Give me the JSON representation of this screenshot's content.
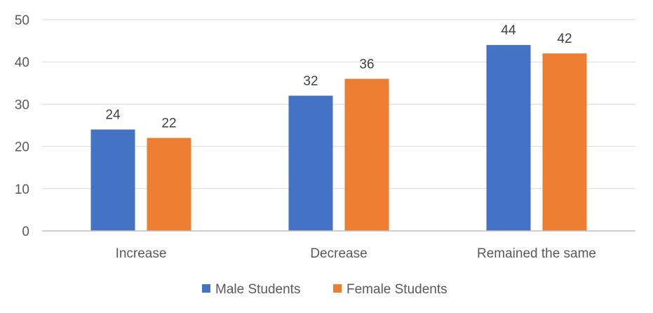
{
  "chart_data": {
    "type": "bar",
    "categories": [
      "Increase",
      "Decrease",
      "Remained the same"
    ],
    "series": [
      {
        "name": "Male Students",
        "values": [
          24,
          32,
          44
        ],
        "color": "#4472c4"
      },
      {
        "name": "Female Students",
        "values": [
          22,
          36,
          42
        ],
        "color": "#ed7d31"
      }
    ],
    "ylim": [
      0,
      50
    ],
    "yticks": [
      0,
      10,
      20,
      30,
      40,
      50
    ],
    "grid": true,
    "legend": "bottom-center",
    "data_labels": true
  }
}
